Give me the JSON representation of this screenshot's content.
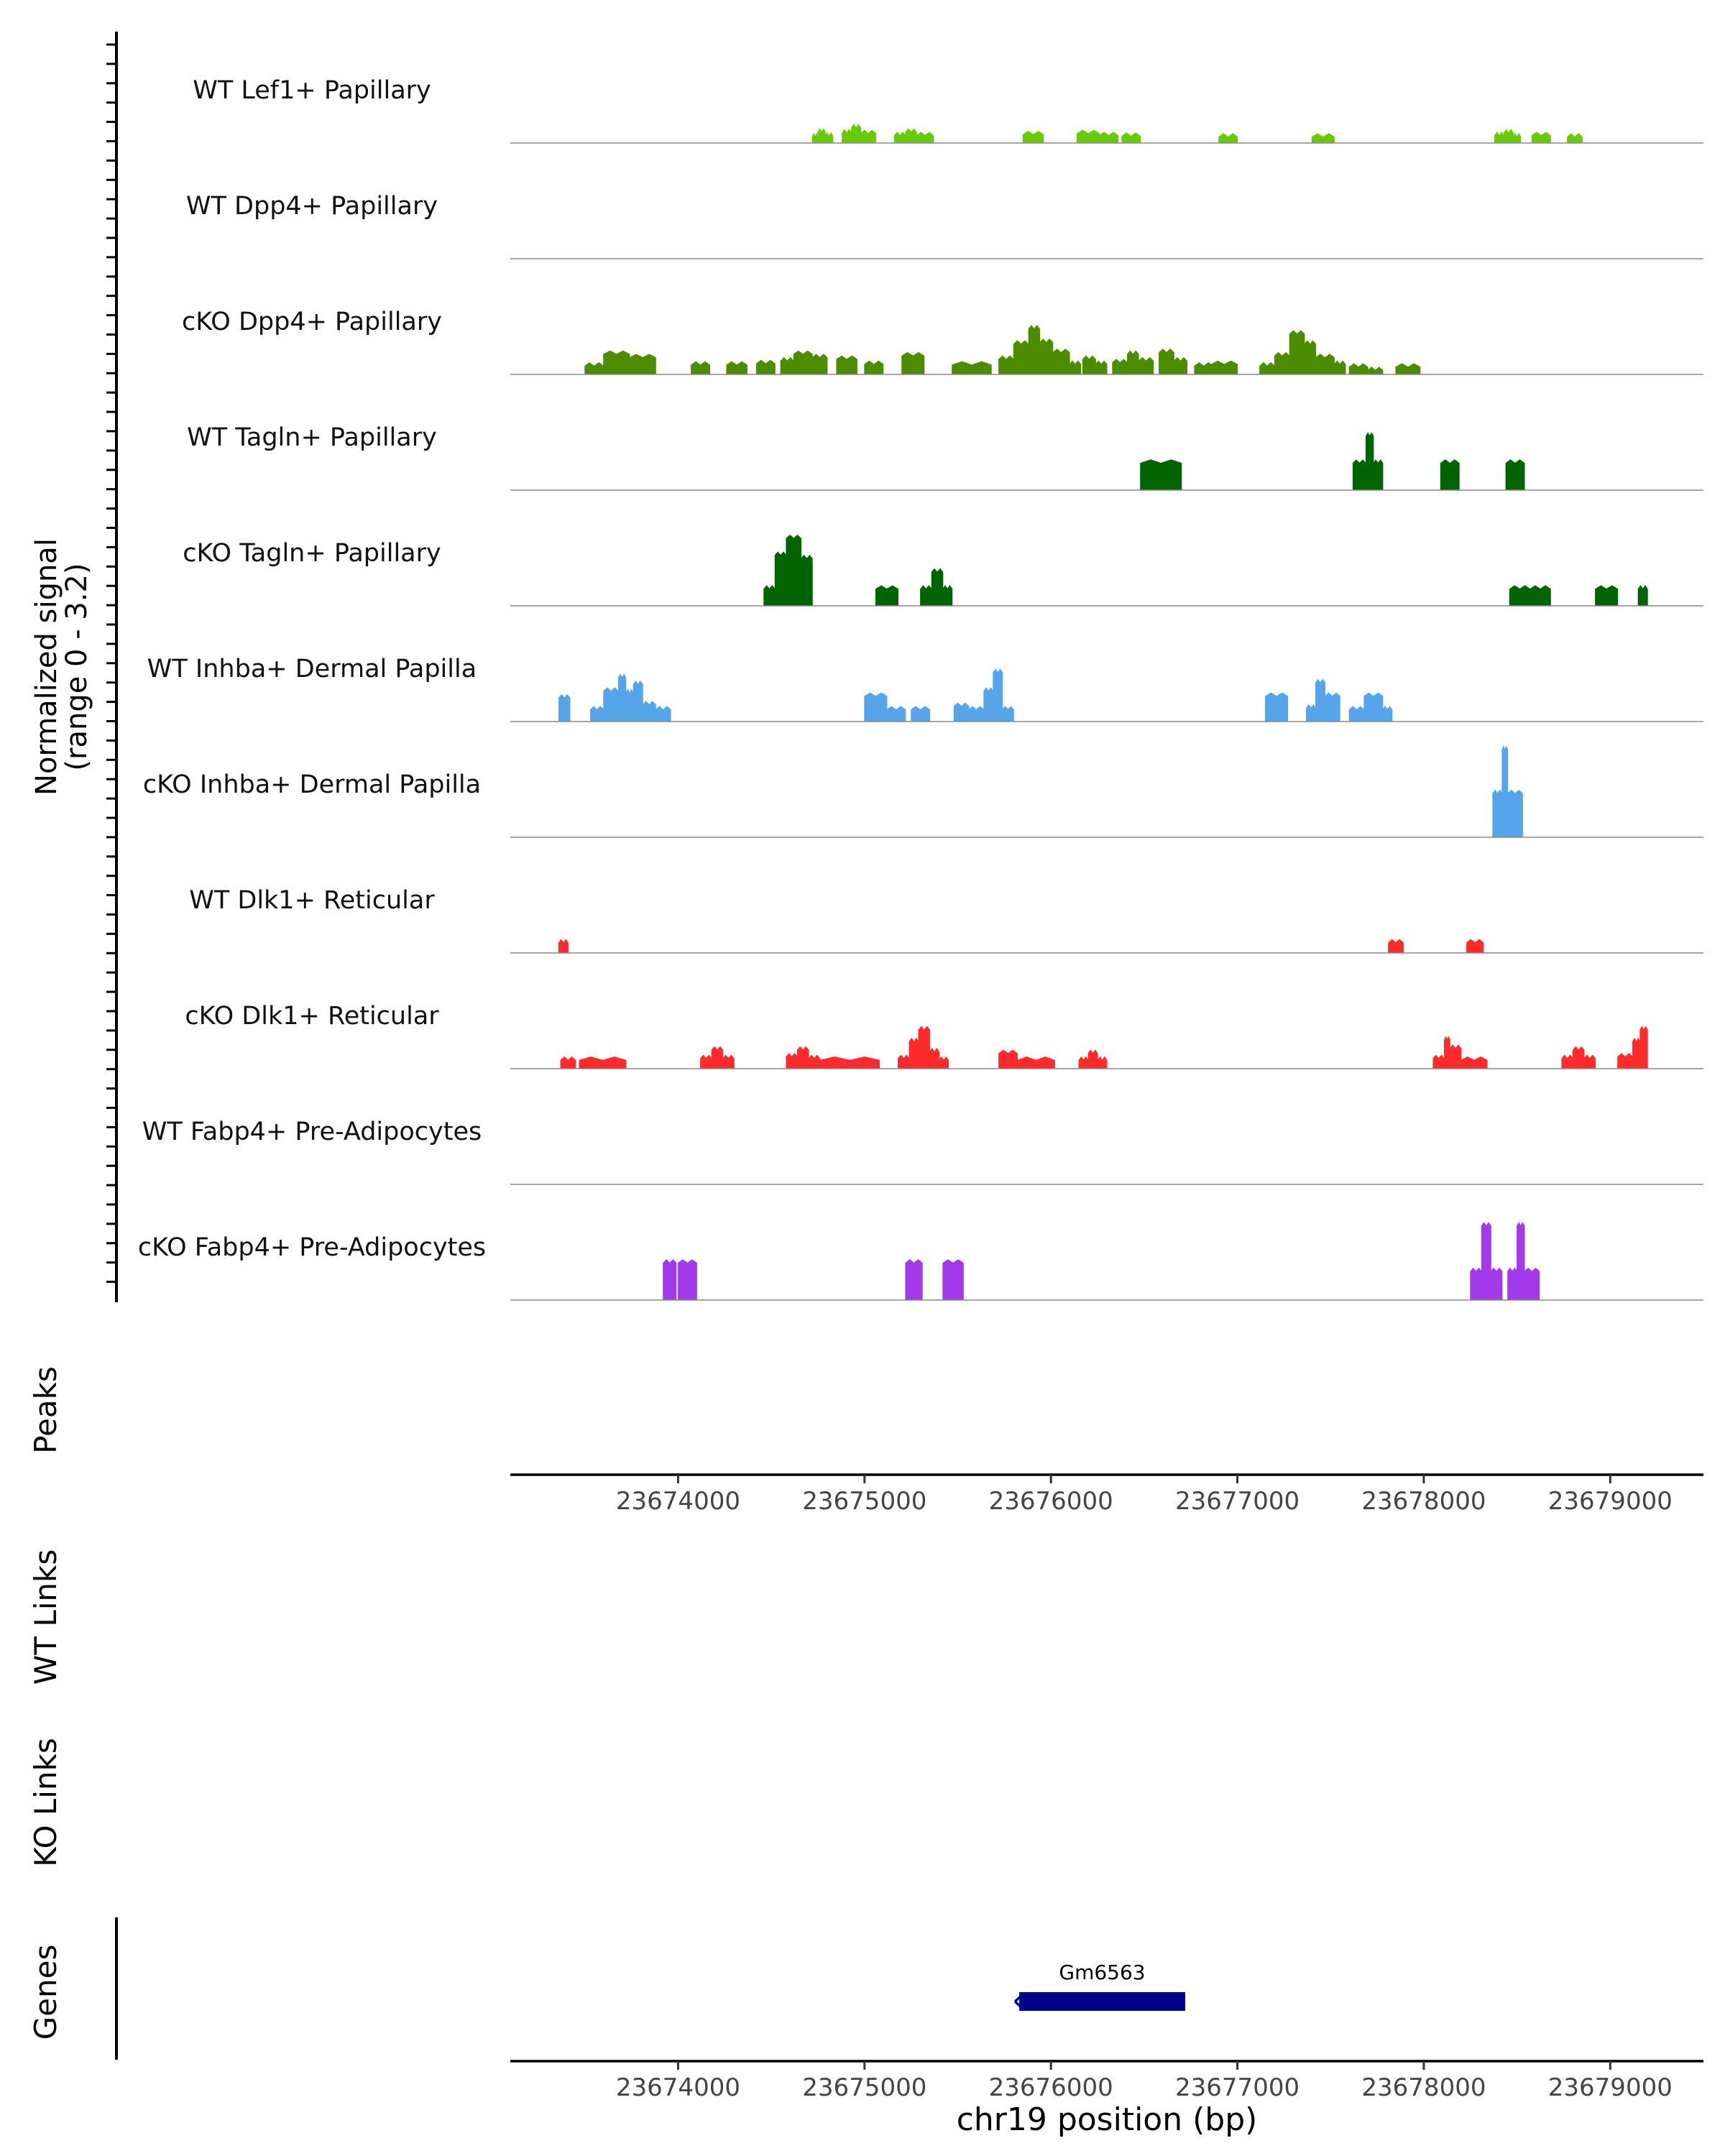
{
  "chart_data": {
    "type": "area",
    "region": "chr19",
    "x_range": [
      23673100,
      23679500
    ],
    "y_range": [
      0,
      3.2
    ],
    "ylabel_line1": "Normalized signal",
    "ylabel_line2": "(range 0 - 3.2)",
    "xlabel": "chr19 position (bp)",
    "ticks": [
      {
        "value": 23674000,
        "label": "23674000"
      },
      {
        "value": 23675000,
        "label": "23675000"
      },
      {
        "value": 23676000,
        "label": "23676000"
      },
      {
        "value": 23677000,
        "label": "23677000"
      },
      {
        "value": 23678000,
        "label": "23678000"
      },
      {
        "value": 23679000,
        "label": "23679000"
      }
    ],
    "track_labels": {
      "peaks": "Peaks",
      "wt_links": "WT Links",
      "ko_links": "KO Links",
      "genes": "Genes"
    },
    "series": [
      {
        "name": "WT Lef1+ Papillary",
        "color": "#66CC00",
        "peaks": [
          [
            23674720,
            23674750,
            0.18,
            0.28
          ],
          [
            23674750,
            23674790,
            0.32,
            0.42
          ],
          [
            23674790,
            23674830,
            0.2,
            0.3
          ],
          [
            23674880,
            23674930,
            0.3,
            0.4
          ],
          [
            23674930,
            23674980,
            0.45,
            0.55
          ],
          [
            23674980,
            23675060,
            0.28,
            0.38
          ],
          [
            23675160,
            23675220,
            0.22,
            0.32
          ],
          [
            23675220,
            23675280,
            0.32,
            0.42
          ],
          [
            23675280,
            23675370,
            0.22,
            0.32
          ],
          [
            23675850,
            23675960,
            0.25,
            0.35
          ],
          [
            23676140,
            23676260,
            0.28,
            0.38
          ],
          [
            23676260,
            23676360,
            0.22,
            0.32
          ],
          [
            23676380,
            23676480,
            0.2,
            0.3
          ],
          [
            23676900,
            23677000,
            0.18,
            0.28
          ],
          [
            23677400,
            23677520,
            0.18,
            0.28
          ],
          [
            23678380,
            23678430,
            0.22,
            0.32
          ],
          [
            23678430,
            23678480,
            0.3,
            0.4
          ],
          [
            23678480,
            23678520,
            0.18,
            0.28
          ],
          [
            23678580,
            23678680,
            0.22,
            0.32
          ],
          [
            23678770,
            23678850,
            0.18,
            0.28
          ]
        ]
      },
      {
        "name": "WT Dpp4+ Papillary",
        "color": "#4D8C00",
        "peaks": []
      },
      {
        "name": "cKO Dpp4+ Papillary",
        "color": "#4D8C00",
        "peaks": [
          [
            23673500,
            23673600,
            0.25,
            0.35
          ],
          [
            23673600,
            23673740,
            0.6,
            0.7
          ],
          [
            23673740,
            23673880,
            0.5,
            0.6
          ],
          [
            23674070,
            23674170,
            0.28,
            0.38
          ],
          [
            23674260,
            23674370,
            0.28,
            0.38
          ],
          [
            23674420,
            23674520,
            0.32,
            0.42
          ],
          [
            23674550,
            23674620,
            0.4,
            0.5
          ],
          [
            23674620,
            23674720,
            0.6,
            0.7
          ],
          [
            23674720,
            23674800,
            0.5,
            0.6
          ],
          [
            23674850,
            23674960,
            0.45,
            0.55
          ],
          [
            23675000,
            23675100,
            0.3,
            0.4
          ],
          [
            23675200,
            23675320,
            0.55,
            0.65
          ],
          [
            23675470,
            23675680,
            0.28,
            0.38
          ],
          [
            23675720,
            23675800,
            0.45,
            0.55
          ],
          [
            23675800,
            23675880,
            0.9,
            1.0
          ],
          [
            23675880,
            23675940,
            1.35,
            1.45
          ],
          [
            23675940,
            23676010,
            0.95,
            1.05
          ],
          [
            23676010,
            23676100,
            0.65,
            0.75
          ],
          [
            23676100,
            23676160,
            0.3,
            0.4
          ],
          [
            23676170,
            23676240,
            0.45,
            0.55
          ],
          [
            23676240,
            23676300,
            0.3,
            0.4
          ],
          [
            23676330,
            23676410,
            0.35,
            0.45
          ],
          [
            23676410,
            23676470,
            0.6,
            0.7
          ],
          [
            23676470,
            23676550,
            0.4,
            0.5
          ],
          [
            23676580,
            23676660,
            0.65,
            0.75
          ],
          [
            23676660,
            23676730,
            0.4,
            0.5
          ],
          [
            23676770,
            23676870,
            0.25,
            0.35
          ],
          [
            23676860,
            23677000,
            0.3,
            0.4
          ],
          [
            23677120,
            23677200,
            0.25,
            0.35
          ],
          [
            23677200,
            23677280,
            0.55,
            0.65
          ],
          [
            23677280,
            23677360,
            1.2,
            1.3
          ],
          [
            23677360,
            23677420,
            0.9,
            1.0
          ],
          [
            23677420,
            23677520,
            0.5,
            0.6
          ],
          [
            23677520,
            23677580,
            0.3,
            0.4
          ],
          [
            23677600,
            23677700,
            0.22,
            0.32
          ],
          [
            23677700,
            23677780,
            0.12,
            0.22
          ],
          [
            23677850,
            23677980,
            0.22,
            0.32
          ]
        ]
      },
      {
        "name": "WT Tagln+ Papillary",
        "color": "#006400",
        "peaks": [
          [
            23676480,
            23676700,
            0.8,
            0.9
          ],
          [
            23677620,
            23677690,
            0.8,
            0.9
          ],
          [
            23677690,
            23677730,
            1.6,
            1.7
          ],
          [
            23677730,
            23677780,
            0.8,
            0.9
          ],
          [
            23678090,
            23678190,
            0.8,
            0.9
          ],
          [
            23678440,
            23678540,
            0.8,
            0.9
          ]
        ]
      },
      {
        "name": "cKO Tagln+ Papillary",
        "color": "#006400",
        "peaks": [
          [
            23674460,
            23674520,
            0.5,
            0.6
          ],
          [
            23674520,
            23674580,
            1.5,
            1.6
          ],
          [
            23674580,
            23674660,
            2.0,
            2.1
          ],
          [
            23674660,
            23674720,
            1.4,
            1.5
          ],
          [
            23675060,
            23675180,
            0.5,
            0.6
          ],
          [
            23675300,
            23675360,
            0.5,
            0.6
          ],
          [
            23675360,
            23675420,
            1.0,
            1.1
          ],
          [
            23675420,
            23675470,
            0.5,
            0.6
          ],
          [
            23678460,
            23678570,
            0.5,
            0.6
          ],
          [
            23678570,
            23678680,
            0.5,
            0.6
          ],
          [
            23678920,
            23679040,
            0.5,
            0.6
          ],
          [
            23679150,
            23679200,
            0.5,
            0.6
          ]
        ]
      },
      {
        "name": "WT Inhba+ Dermal Papilla",
        "color": "#56A5EB",
        "peaks": [
          [
            23673360,
            23673420,
            0.7,
            0.8
          ],
          [
            23673530,
            23673600,
            0.35,
            0.45
          ],
          [
            23673600,
            23673680,
            0.9,
            1.0
          ],
          [
            23673680,
            23673720,
            1.3,
            1.4
          ],
          [
            23673720,
            23673760,
            0.85,
            0.95
          ],
          [
            23673760,
            23673810,
            1.1,
            1.2
          ],
          [
            23673810,
            23673880,
            0.5,
            0.6
          ],
          [
            23673880,
            23673960,
            0.35,
            0.45
          ],
          [
            23675000,
            23675120,
            0.75,
            0.85
          ],
          [
            23675120,
            23675220,
            0.35,
            0.45
          ],
          [
            23675250,
            23675350,
            0.35,
            0.45
          ],
          [
            23675480,
            23675560,
            0.45,
            0.55
          ],
          [
            23675560,
            23675640,
            0.35,
            0.45
          ],
          [
            23675640,
            23675690,
            0.9,
            1.0
          ],
          [
            23675690,
            23675740,
            1.45,
            1.55
          ],
          [
            23675740,
            23675800,
            0.35,
            0.45
          ],
          [
            23677150,
            23677270,
            0.75,
            0.85
          ],
          [
            23677370,
            23677420,
            0.4,
            0.5
          ],
          [
            23677420,
            23677470,
            1.15,
            1.25
          ],
          [
            23677470,
            23677550,
            0.75,
            0.85
          ],
          [
            23677600,
            23677680,
            0.35,
            0.45
          ],
          [
            23677680,
            23677780,
            0.75,
            0.85
          ],
          [
            23677780,
            23677830,
            0.35,
            0.45
          ]
        ]
      },
      {
        "name": "cKO Inhba+ Dermal Papilla",
        "color": "#56A5EB",
        "peaks": [
          [
            23678370,
            23678420,
            1.3,
            1.4
          ],
          [
            23678420,
            23678450,
            2.6,
            2.7
          ],
          [
            23678450,
            23678530,
            1.3,
            1.4
          ]
        ]
      },
      {
        "name": "WT Dlk1+ Reticular",
        "color": "#FF2A2A",
        "peaks": [
          [
            23673360,
            23673410,
            0.3,
            0.4
          ],
          [
            23677810,
            23677890,
            0.3,
            0.4
          ],
          [
            23678230,
            23678320,
            0.3,
            0.4
          ]
        ]
      },
      {
        "name": "cKO Dlk1+ Reticular",
        "color": "#FF2A2A",
        "peaks": [
          [
            23673370,
            23673450,
            0.25,
            0.35
          ],
          [
            23673470,
            23673720,
            0.25,
            0.35
          ],
          [
            23674120,
            23674180,
            0.3,
            0.4
          ],
          [
            23674180,
            23674240,
            0.55,
            0.65
          ],
          [
            23674240,
            23674300,
            0.3,
            0.4
          ],
          [
            23674580,
            23674640,
            0.35,
            0.45
          ],
          [
            23674640,
            23674700,
            0.55,
            0.65
          ],
          [
            23674700,
            23674760,
            0.3,
            0.4
          ],
          [
            23674760,
            23675080,
            0.25,
            0.35
          ],
          [
            23675180,
            23675240,
            0.3,
            0.4
          ],
          [
            23675240,
            23675290,
            0.8,
            0.9
          ],
          [
            23675290,
            23675350,
            1.15,
            1.25
          ],
          [
            23675350,
            23675400,
            0.5,
            0.6
          ],
          [
            23675400,
            23675450,
            0.25,
            0.35
          ],
          [
            23675720,
            23675820,
            0.45,
            0.55
          ],
          [
            23675820,
            23676020,
            0.25,
            0.35
          ],
          [
            23676150,
            23676200,
            0.25,
            0.35
          ],
          [
            23676200,
            23676250,
            0.45,
            0.55
          ],
          [
            23676250,
            23676300,
            0.25,
            0.35
          ],
          [
            23678050,
            23678110,
            0.3,
            0.4
          ],
          [
            23678110,
            23678140,
            0.85,
            0.95
          ],
          [
            23678140,
            23678200,
            0.6,
            0.7
          ],
          [
            23678200,
            23678340,
            0.25,
            0.35
          ],
          [
            23678740,
            23678800,
            0.3,
            0.4
          ],
          [
            23678800,
            23678860,
            0.55,
            0.65
          ],
          [
            23678860,
            23678920,
            0.3,
            0.4
          ],
          [
            23679040,
            23679120,
            0.35,
            0.45
          ],
          [
            23679120,
            23679160,
            0.8,
            0.9
          ],
          [
            23679160,
            23679200,
            1.15,
            1.25
          ]
        ]
      },
      {
        "name": "WT Fabp4+ Pre-Adipocytes",
        "color": "#A23AEB",
        "peaks": []
      },
      {
        "name": "cKO Fabp4+ Pre-Adipocytes",
        "color": "#A23AEB",
        "peaks": [
          [
            23673920,
            23673990,
            1.1,
            1.2
          ],
          [
            23674000,
            23674100,
            1.1,
            1.2
          ],
          [
            23675220,
            23675310,
            1.1,
            1.2
          ],
          [
            23675420,
            23675530,
            1.1,
            1.2
          ],
          [
            23678250,
            23678310,
            0.85,
            0.95
          ],
          [
            23678310,
            23678360,
            2.2,
            2.3
          ],
          [
            23678360,
            23678420,
            0.85,
            0.95
          ],
          [
            23678450,
            23678500,
            0.85,
            0.95
          ],
          [
            23678500,
            23678540,
            2.2,
            2.3
          ],
          [
            23678540,
            23678620,
            0.85,
            0.95
          ]
        ]
      }
    ],
    "genes": [
      {
        "name": "Gm6563",
        "start": 23675830,
        "end": 23676720,
        "strand": "-",
        "color": "#00008B"
      }
    ]
  }
}
